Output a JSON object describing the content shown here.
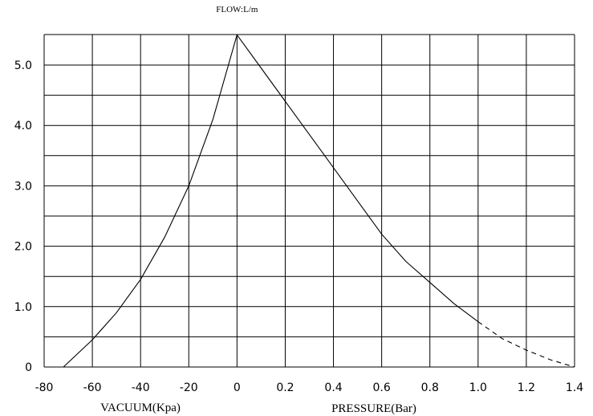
{
  "chart_data": {
    "type": "line",
    "title": "FLOW:L/m",
    "ylabel": "",
    "ylim": [
      0,
      5.5
    ],
    "y_ticks": [
      "0",
      "1.0",
      "2.0",
      "3.0",
      "4.0",
      "5.0"
    ],
    "grid": true,
    "x_axis": {
      "segments": [
        {
          "label": "VACUUM(Kpa)",
          "range": [
            -80,
            0
          ],
          "ticks": [
            "-80",
            "-60",
            "-40",
            "-20"
          ]
        },
        {
          "label": "PRESSURE(Bar)",
          "range": [
            0,
            1.4
          ],
          "ticks": [
            "0",
            "0.2",
            "0.4",
            "0.6",
            "0.8",
            "1.0",
            "1.2",
            "1.4"
          ]
        }
      ]
    },
    "series": [
      {
        "segment": "vacuum",
        "style": "solid",
        "points": [
          [
            -72,
            0
          ],
          [
            -60,
            0.45
          ],
          [
            -50,
            0.9
          ],
          [
            -40,
            1.45
          ],
          [
            -30,
            2.15
          ],
          [
            -20,
            3.0
          ],
          [
            -10,
            4.1
          ],
          [
            0,
            5.5
          ]
        ]
      },
      {
        "segment": "pressure",
        "style": "solid",
        "points": [
          [
            0,
            5.5
          ],
          [
            0.1,
            4.95
          ],
          [
            0.2,
            4.4
          ],
          [
            0.3,
            3.85
          ],
          [
            0.4,
            3.3
          ],
          [
            0.5,
            2.75
          ],
          [
            0.6,
            2.2
          ],
          [
            0.7,
            1.75
          ],
          [
            0.8,
            1.4
          ],
          [
            0.9,
            1.05
          ],
          [
            1.0,
            0.75
          ]
        ]
      },
      {
        "segment": "pressure",
        "style": "dashed",
        "points": [
          [
            1.0,
            0.75
          ],
          [
            1.1,
            0.47
          ],
          [
            1.2,
            0.28
          ],
          [
            1.3,
            0.12
          ],
          [
            1.4,
            0
          ]
        ]
      }
    ]
  }
}
